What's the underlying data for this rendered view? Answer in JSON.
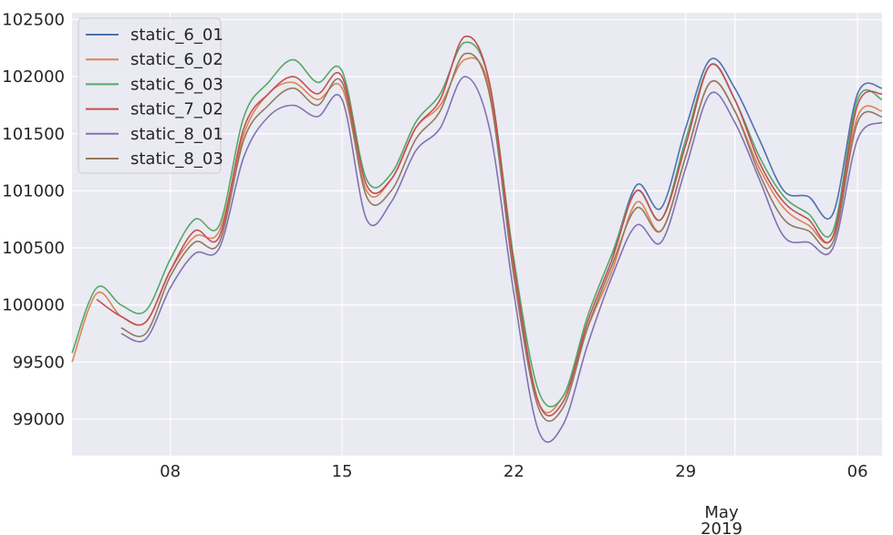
{
  "chart_data": {
    "type": "line",
    "title": "",
    "xlabel": "",
    "ylabel": "",
    "x_range": [
      "2019-04-04",
      "2019-05-07"
    ],
    "ylim": [
      98680,
      102560
    ],
    "grid": true,
    "legend_position": "top-left",
    "x_ticks": [
      {
        "date": "2019-04-08",
        "label": "08"
      },
      {
        "date": "2019-04-15",
        "label": "15"
      },
      {
        "date": "2019-04-22",
        "label": "22"
      },
      {
        "date": "2019-04-29",
        "label": "29"
      },
      {
        "date": "2019-05-06",
        "label": "06"
      }
    ],
    "x_month_label": {
      "date": "2019-05-01",
      "month": "May",
      "year": "2019"
    },
    "y_ticks": [
      99000,
      99500,
      100000,
      100500,
      101000,
      101500,
      102000,
      102500
    ],
    "dates": [
      "2019-04-04",
      "2019-04-05",
      "2019-04-06",
      "2019-04-07",
      "2019-04-08",
      "2019-04-09",
      "2019-04-10",
      "2019-04-11",
      "2019-04-12",
      "2019-04-13",
      "2019-04-14",
      "2019-04-15",
      "2019-04-16",
      "2019-04-17",
      "2019-04-18",
      "2019-04-19",
      "2019-04-20",
      "2019-04-21",
      "2019-04-22",
      "2019-04-23",
      "2019-04-24",
      "2019-04-25",
      "2019-04-26",
      "2019-04-27",
      "2019-04-28",
      "2019-04-29",
      "2019-04-30",
      "2019-05-01",
      "2019-05-02",
      "2019-05-03",
      "2019-05-04",
      "2019-05-05",
      "2019-05-06",
      "2019-05-07"
    ],
    "series": [
      {
        "name": "static_6_01",
        "color": "#4c72b0",
        "start": 17,
        "values": [
          null,
          null,
          null,
          null,
          null,
          null,
          null,
          null,
          null,
          null,
          null,
          null,
          null,
          null,
          null,
          null,
          null,
          null,
          null,
          null,
          null,
          null,
          100400,
          101050,
          100850,
          101550,
          102150,
          101900,
          101450,
          101000,
          100950,
          100800,
          101850,
          101900
        ]
      },
      {
        "name": "static_6_02",
        "color": "#dd8452",
        "start": 0,
        "values": [
          99500,
          100100,
          99900,
          99850,
          100300,
          100600,
          100650,
          101500,
          101850,
          101950,
          101800,
          101900,
          101000,
          101100,
          101550,
          101750,
          102150,
          101900,
          100300,
          99150,
          99200,
          99800,
          100300,
          100900,
          100650,
          101300,
          101950,
          101700,
          101200,
          100850,
          100700,
          100600,
          101650,
          101700
        ]
      },
      {
        "name": "static_6_03",
        "color": "#55a868",
        "start": 0,
        "values": [
          99580,
          100150,
          100000,
          99950,
          100400,
          100750,
          100700,
          101650,
          101950,
          102150,
          101950,
          102050,
          101100,
          101150,
          101600,
          101850,
          102300,
          101950,
          100400,
          99250,
          99200,
          99900,
          100450,
          101000,
          100750,
          101450,
          102100,
          101800,
          101300,
          100950,
          100800,
          100650,
          101800,
          101800
        ]
      },
      {
        "name": "static_7_02",
        "color": "#c44e52",
        "start": 0,
        "values": [
          null,
          100050,
          99900,
          99850,
          100300,
          100650,
          100600,
          101550,
          101850,
          102000,
          101850,
          102000,
          101050,
          101100,
          101550,
          101800,
          102350,
          101950,
          100350,
          99150,
          99150,
          99850,
          100400,
          101000,
          100750,
          101400,
          102100,
          101800,
          101250,
          100900,
          100750,
          100600,
          101750,
          101850
        ]
      },
      {
        "name": "static_8_01",
        "color": "#8172b3",
        "start": 0,
        "values": [
          null,
          null,
          99750,
          99700,
          100150,
          100450,
          100500,
          101300,
          101650,
          101750,
          101650,
          101800,
          100750,
          100900,
          101350,
          101550,
          102000,
          101550,
          100100,
          98900,
          98950,
          99650,
          100250,
          100700,
          100550,
          101200,
          101850,
          101600,
          101100,
          100600,
          100550,
          100500,
          101450,
          101600
        ]
      },
      {
        "name": "static_8_03",
        "color": "#937860",
        "start": 0,
        "values": [
          null,
          null,
          99800,
          99750,
          100250,
          100550,
          100550,
          101450,
          101750,
          101900,
          101750,
          101950,
          100950,
          101000,
          101450,
          101700,
          102200,
          101850,
          100250,
          99100,
          99100,
          99800,
          100350,
          100850,
          100650,
          101300,
          101950,
          101700,
          101150,
          100750,
          100650,
          100550,
          101600,
          101650
        ]
      }
    ]
  }
}
